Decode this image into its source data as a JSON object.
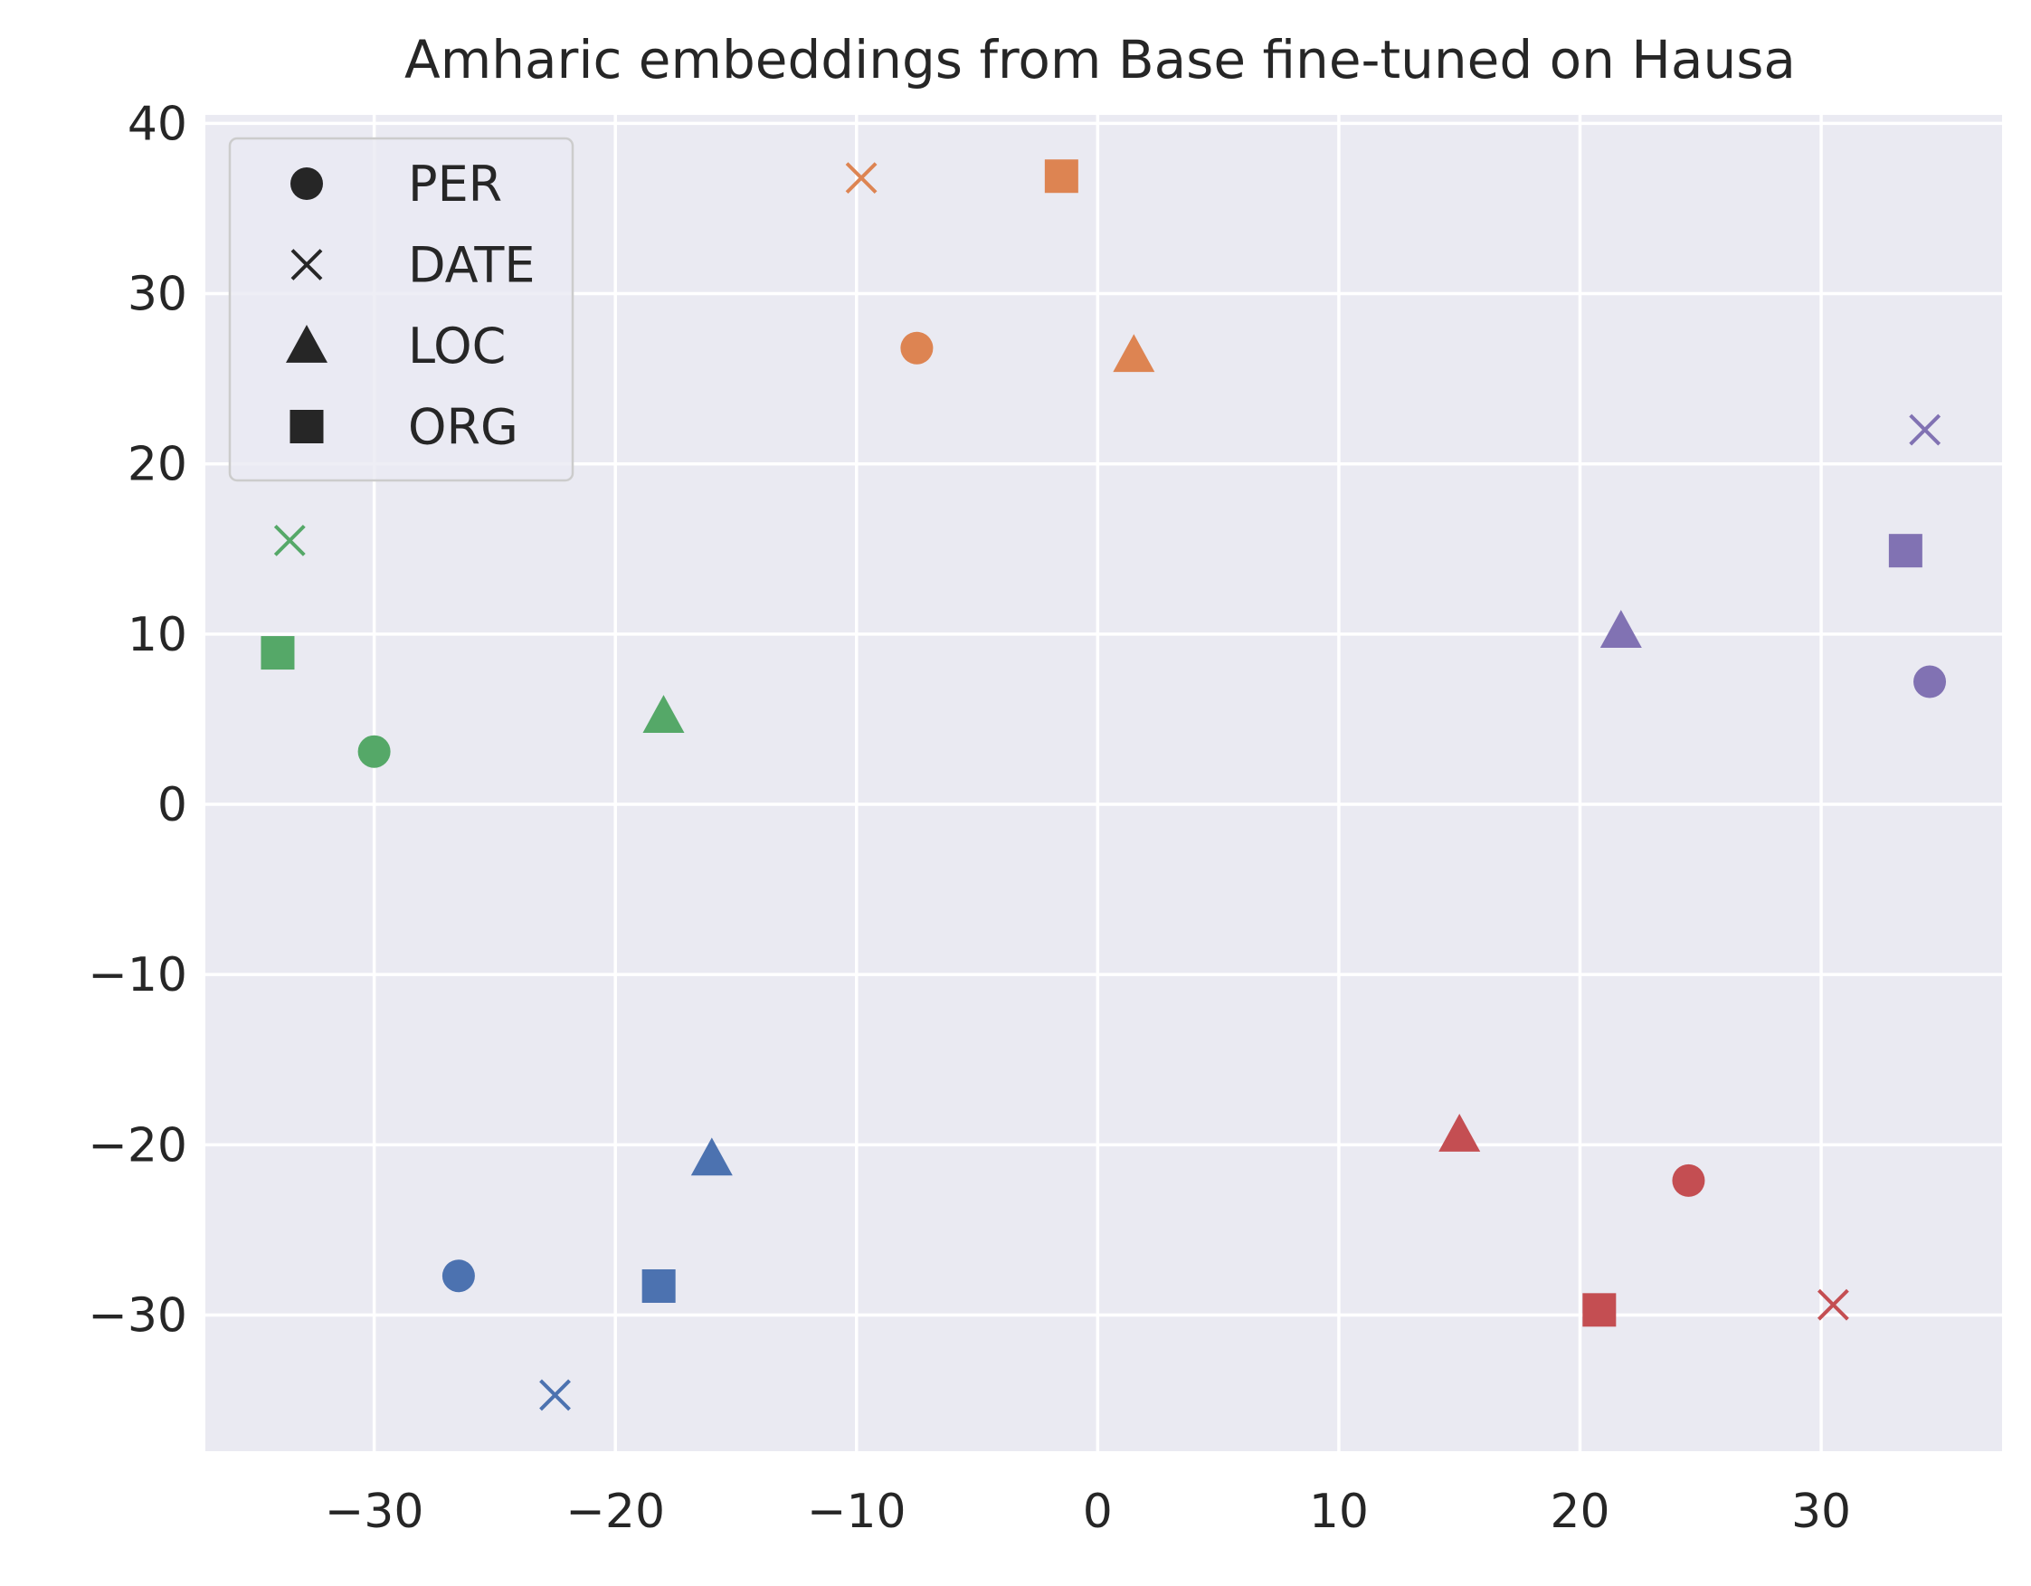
{
  "chart_data": {
    "type": "scatter",
    "title": "Amharic embeddings from Base fine-tuned on Hausa",
    "xlabel": "",
    "ylabel": "",
    "xlim": [
      -37,
      37.5
    ],
    "ylim": [
      -38,
      40.5
    ],
    "xticks": [
      -30,
      -20,
      -10,
      0,
      10,
      20,
      30
    ],
    "yticks": [
      40,
      30,
      20,
      10,
      0,
      -10,
      -20,
      -30
    ],
    "xtick_labels": [
      "−30",
      "−20",
      "−10",
      "0",
      "10",
      "20",
      "30"
    ],
    "ytick_labels": [
      "40",
      "30",
      "20",
      "10",
      "0",
      "−10",
      "−20",
      "−30"
    ],
    "grid": true,
    "legend_position": "top-left",
    "legend": [
      {
        "label": "PER",
        "marker": "circle"
      },
      {
        "label": "DATE",
        "marker": "x"
      },
      {
        "label": "LOC",
        "marker": "triangle"
      },
      {
        "label": "ORG",
        "marker": "square"
      }
    ],
    "colors": {
      "blue": "#4c72b0",
      "orange": "#dd8452",
      "green": "#55a868",
      "red": "#c44e52",
      "purple": "#8172b3",
      "background": "#eaeaf2",
      "grid": "#ffffff",
      "text": "#262626"
    },
    "points": [
      {
        "entity": "PER",
        "group": "blue",
        "x": -26.5,
        "y": -27.7
      },
      {
        "entity": "DATE",
        "group": "blue",
        "x": -22.5,
        "y": -34.7
      },
      {
        "entity": "LOC",
        "group": "blue",
        "x": -16.0,
        "y": -20.8
      },
      {
        "entity": "ORG",
        "group": "blue",
        "x": -18.2,
        "y": -28.3
      },
      {
        "entity": "PER",
        "group": "orange",
        "x": -7.5,
        "y": 26.8
      },
      {
        "entity": "DATE",
        "group": "orange",
        "x": -9.8,
        "y": 36.8
      },
      {
        "entity": "LOC",
        "group": "orange",
        "x": 1.5,
        "y": 26.4
      },
      {
        "entity": "ORG",
        "group": "orange",
        "x": -1.5,
        "y": 36.9
      },
      {
        "entity": "PER",
        "group": "green",
        "x": -30.0,
        "y": 3.1
      },
      {
        "entity": "DATE",
        "group": "green",
        "x": -33.5,
        "y": 15.5
      },
      {
        "entity": "LOC",
        "group": "green",
        "x": -18.0,
        "y": 5.2
      },
      {
        "entity": "ORG",
        "group": "green",
        "x": -34.0,
        "y": 8.9
      },
      {
        "entity": "PER",
        "group": "red",
        "x": 24.5,
        "y": -22.1
      },
      {
        "entity": "DATE",
        "group": "red",
        "x": 30.5,
        "y": -29.4
      },
      {
        "entity": "LOC",
        "group": "red",
        "x": 15.0,
        "y": -19.4
      },
      {
        "entity": "ORG",
        "group": "red",
        "x": 20.8,
        "y": -29.7
      },
      {
        "entity": "PER",
        "group": "purple",
        "x": 34.5,
        "y": 7.2
      },
      {
        "entity": "DATE",
        "group": "purple",
        "x": 34.3,
        "y": 22.0
      },
      {
        "entity": "LOC",
        "group": "purple",
        "x": 21.7,
        "y": 10.2
      },
      {
        "entity": "ORG",
        "group": "purple",
        "x": 33.5,
        "y": 14.9
      }
    ]
  }
}
